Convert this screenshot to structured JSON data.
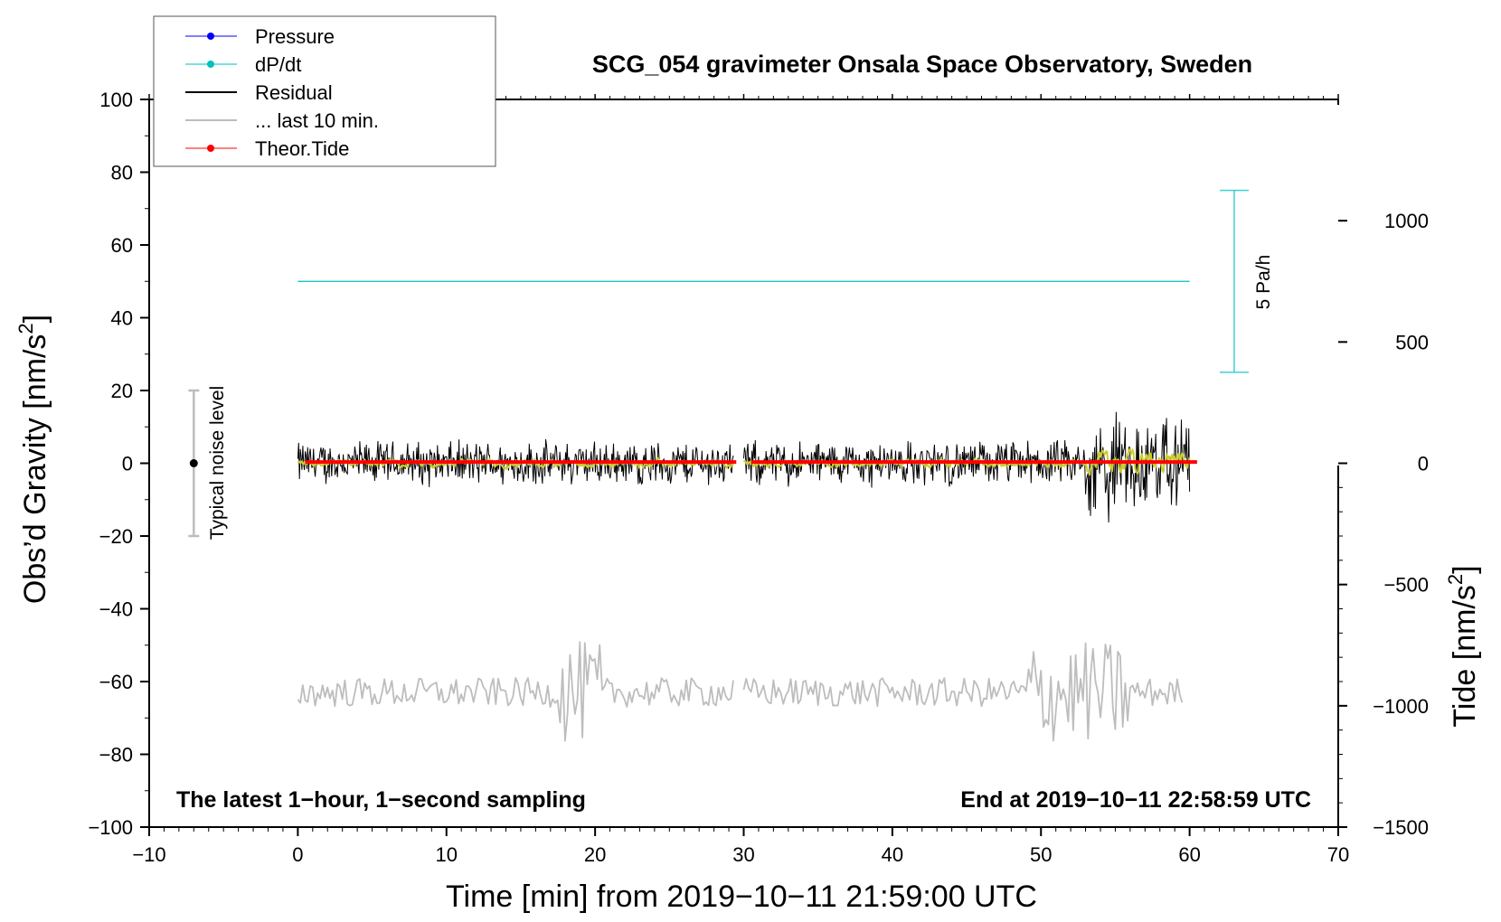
{
  "chart_data": {
    "type": "line",
    "title": "SCG_054 gravimeter Onsala Space Observatory, Sweden",
    "xlabel": "Time [min] from 2019−10−11 21:59:00 UTC",
    "ylabel_main": "Obs’d Gravity [nm/s",
    "ylabel_main_sup": "2",
    "ylabel_main_suffix": "]",
    "ylabel_right": "Tide [nm/s",
    "ylabel_right_sup": "2",
    "ylabel_right_suffix": "]",
    "xlim": [
      -10,
      70
    ],
    "ylim": [
      -100,
      100
    ],
    "ylim_right": [
      -1500,
      1500
    ],
    "x_ticks": [
      "−10",
      "0",
      "10",
      "20",
      "30",
      "40",
      "50",
      "60",
      "70"
    ],
    "x_tick_values": [
      -10,
      0,
      10,
      20,
      30,
      40,
      50,
      60,
      70
    ],
    "y_ticks": [
      "−100",
      "−80",
      "−60",
      "−40",
      "−20",
      "0",
      "20",
      "40",
      "60",
      "80",
      "100"
    ],
    "y_tick_values": [
      -100,
      -80,
      -60,
      -40,
      -20,
      0,
      20,
      40,
      60,
      80,
      100
    ],
    "y_right_ticks": [
      "−1500",
      "−1000",
      "−500",
      "0",
      "500",
      "1000"
    ],
    "y_right_tick_values": [
      -1500,
      -1000,
      -500,
      0,
      500,
      1000
    ],
    "legend": {
      "placement": "top-left",
      "entries": [
        {
          "label": "Pressure",
          "color": "#0000ff",
          "marker": true
        },
        {
          "label": "dP/dt",
          "color": "#00bfbf",
          "marker": true
        },
        {
          "label": "Residual",
          "color": "#000000",
          "marker": false
        },
        {
          "label": "... last 10 min.",
          "color": "#bdbdbd",
          "marker": false
        },
        {
          "label": "Theor.Tide",
          "color": "#ff0000",
          "marker": true
        }
      ]
    },
    "annotations": {
      "bottom_left": "The latest 1−hour, 1−second sampling",
      "bottom_right": "End at 2019−10−11 22:58:59 UTC",
      "noise_label": "Typical noise level",
      "scale_label": "5 Pa/h"
    },
    "noise_bar": {
      "x": -7,
      "center": 0,
      "low": -20,
      "high": 20
    },
    "scale_bar": {
      "x": 63,
      "low": 25,
      "high": 75
    },
    "series": [
      {
        "name": "dP/dt",
        "color": "#00bfbf",
        "x": [
          0,
          60
        ],
        "y": [
          50,
          50
        ]
      },
      {
        "name": "Residual",
        "color": "#000000",
        "segments": [
          [
            0,
            29.3
          ],
          [
            30,
            60
          ]
        ],
        "mean": 0,
        "amplitude": 6,
        "burst": {
          "x": [
            53,
            60
          ],
          "amplitude": 18
        }
      },
      {
        "name": "Residual (smoothed)",
        "color": "#cccc33",
        "segments": [
          [
            0,
            29.3
          ],
          [
            30,
            60
          ]
        ],
        "mean": 0
      },
      {
        "name": "Theor.Tide",
        "color": "#ff0000",
        "axis": "right",
        "segments": [
          [
            0.5,
            29.5
          ],
          [
            30.5,
            60.5
          ]
        ],
        "y": [
          5,
          5
        ]
      },
      {
        "name": "... last 10 min.",
        "color": "#bdbdbd",
        "segments": [
          [
            0,
            29.3
          ],
          [
            30,
            59.5
          ]
        ],
        "mean": -63
      }
    ],
    "grid": false
  }
}
